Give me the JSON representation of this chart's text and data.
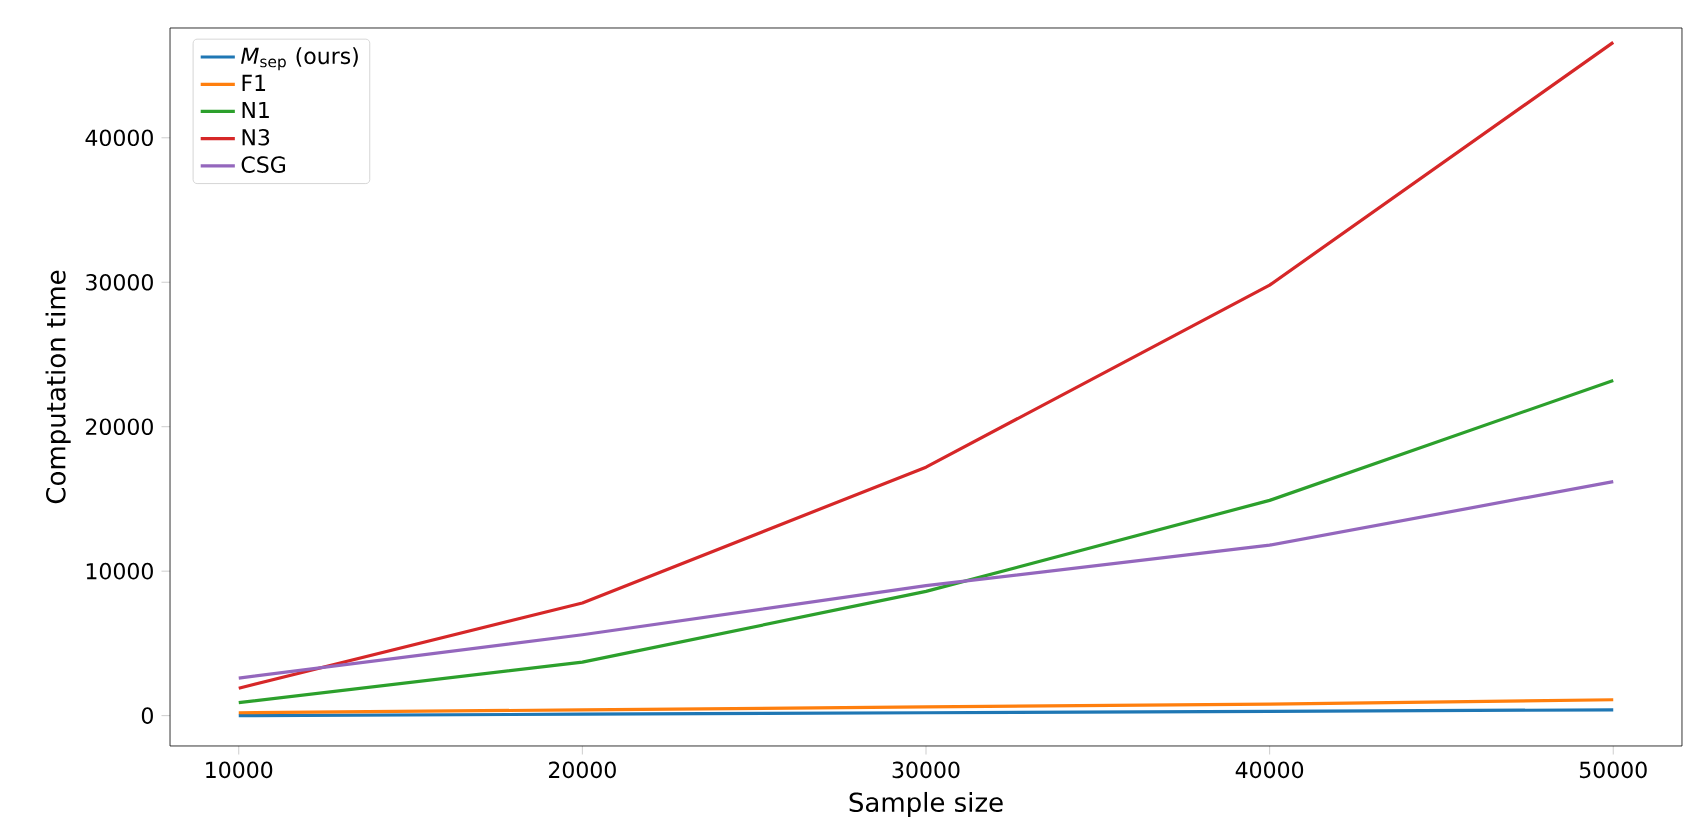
{
  "chart_data": {
    "type": "line",
    "xlabel": "Sample size",
    "ylabel": "Computation time",
    "x": [
      10000,
      20000,
      30000,
      40000,
      50000
    ],
    "series": [
      {
        "name": "*M*$_{sep}$ (ours)",
        "color": "#1f77b4",
        "values": [
          0,
          100,
          200,
          300,
          400
        ]
      },
      {
        "name": "F1",
        "color": "#ff7f0e",
        "values": [
          200,
          400,
          600,
          800,
          1100
        ]
      },
      {
        "name": "N1",
        "color": "#2ca02c",
        "values": [
          900,
          3700,
          8600,
          14900,
          23200
        ]
      },
      {
        "name": "N3",
        "color": "#d62728",
        "values": [
          1900,
          7800,
          17200,
          29800,
          46600
        ]
      },
      {
        "name": "CSG",
        "color": "#9467bd",
        "values": [
          2600,
          5600,
          9000,
          11800,
          16200
        ]
      }
    ],
    "xlim": [
      8000,
      52000
    ],
    "ylim": [
      -2100,
      47600
    ],
    "xticks": [
      10000,
      20000,
      30000,
      40000,
      50000
    ],
    "yticks": [
      0,
      10000,
      20000,
      30000,
      40000
    ],
    "legend": "top left",
    "grid": false,
    "marker": "none",
    "line_style": "solid"
  }
}
